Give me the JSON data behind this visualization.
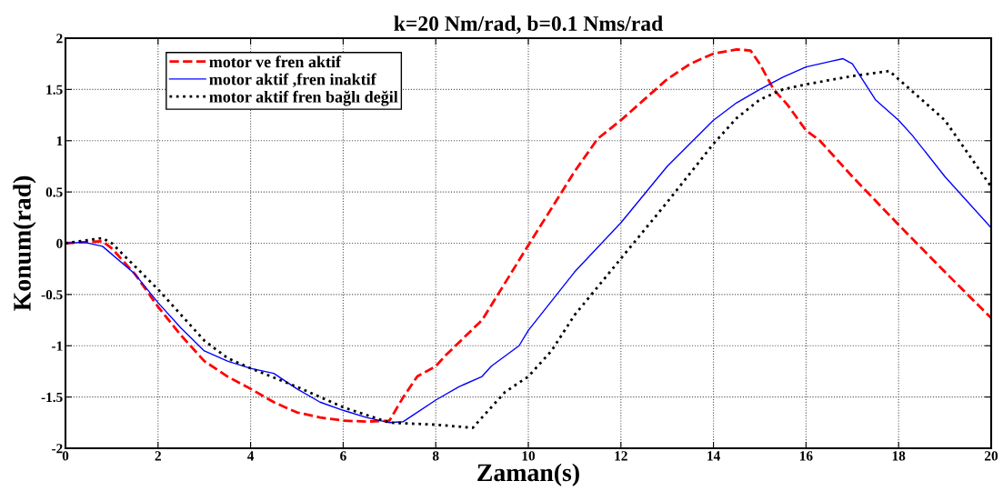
{
  "chart_data": {
    "type": "line",
    "title": "k=20 Nm/rad, b=0.1 Nms/rad",
    "xlabel": "Zaman(s)",
    "ylabel": "Konum(rad)",
    "xlim": [
      0,
      20
    ],
    "xticks": [
      0,
      2,
      4,
      6,
      8,
      10,
      12,
      14,
      16,
      18,
      20
    ],
    "ylim": [
      -2,
      2
    ],
    "yticks": [
      -2,
      -1.5,
      -1,
      -0.5,
      0,
      0.5,
      1,
      1.5,
      2
    ],
    "grid": true,
    "legend": "top left",
    "series": [
      {
        "name": "motor ve fren aktif",
        "color": "#ff0000",
        "line_style": "dashed",
        "x": [
          0,
          0.8,
          1,
          1.5,
          2,
          2.5,
          3,
          3.5,
          4,
          4.5,
          5,
          5.5,
          6,
          6.5,
          7,
          7.3,
          7.6,
          8,
          8.2,
          9,
          10,
          11,
          11.5,
          12,
          12.5,
          13,
          13.5,
          14,
          14.5,
          14.8,
          15,
          15.3,
          15.6,
          16,
          16.3,
          17,
          18,
          19,
          20
        ],
        "values": [
          0,
          0.02,
          -0.05,
          -0.3,
          -0.62,
          -0.9,
          -1.15,
          -1.3,
          -1.42,
          -1.55,
          -1.65,
          -1.7,
          -1.73,
          -1.74,
          -1.73,
          -1.5,
          -1.3,
          -1.2,
          -1.1,
          -0.75,
          -0.02,
          0.7,
          1.02,
          1.2,
          1.4,
          1.6,
          1.75,
          1.85,
          1.89,
          1.88,
          1.75,
          1.5,
          1.35,
          1.1,
          1.0,
          0.65,
          0.18,
          -0.28,
          -0.73
        ]
      },
      {
        "name": "motor aktif ,fren inaktif",
        "color": "#0000ff",
        "line_style": "solid",
        "x": [
          0,
          0.4,
          0.8,
          1.5,
          2,
          2.5,
          3,
          3.5,
          4,
          4.5,
          5,
          5.5,
          6,
          6.5,
          7,
          7.3,
          7.5,
          8,
          8.5,
          9,
          9.2,
          9.5,
          9.8,
          10,
          11,
          12,
          13,
          14,
          14.5,
          15,
          15.5,
          16,
          16.5,
          16.8,
          17,
          17.5,
          18,
          18.3,
          19,
          20
        ],
        "values": [
          0,
          0.01,
          -0.03,
          -0.3,
          -0.58,
          -0.83,
          -1.05,
          -1.15,
          -1.22,
          -1.27,
          -1.42,
          -1.55,
          -1.63,
          -1.7,
          -1.75,
          -1.74,
          -1.68,
          -1.53,
          -1.4,
          -1.3,
          -1.2,
          -1.1,
          -1.0,
          -0.85,
          -0.28,
          0.2,
          0.75,
          1.2,
          1.37,
          1.5,
          1.62,
          1.72,
          1.77,
          1.8,
          1.75,
          1.4,
          1.2,
          1.05,
          0.65,
          0.15
        ]
      },
      {
        "name": "motor aktif fren bağlı değil",
        "color": "#000000",
        "line_style": "dotted",
        "x": [
          0,
          0.8,
          1,
          2,
          3,
          3.5,
          4,
          5,
          6,
          7,
          8,
          8.8,
          9,
          9.5,
          10,
          10.5,
          11,
          12,
          13,
          14,
          14.5,
          15,
          15.5,
          16,
          17,
          17.8,
          18,
          19,
          20
        ],
        "values": [
          0,
          0.05,
          0,
          -0.45,
          -0.95,
          -1.12,
          -1.22,
          -1.4,
          -1.6,
          -1.75,
          -1.77,
          -1.8,
          -1.7,
          -1.45,
          -1.3,
          -1.05,
          -0.7,
          -0.15,
          0.4,
          0.97,
          1.22,
          1.4,
          1.5,
          1.55,
          1.63,
          1.68,
          1.6,
          1.2,
          0.55
        ]
      }
    ]
  }
}
